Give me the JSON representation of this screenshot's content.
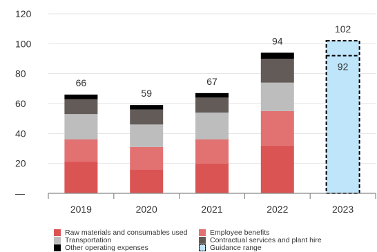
{
  "chart_data": {
    "type": "bar",
    "stacked": true,
    "categories": [
      "2019",
      "2020",
      "2021",
      "2022",
      "2023"
    ],
    "y_ticks": [
      {
        "value": 0,
        "label": "—"
      },
      {
        "value": 20,
        "label": "20"
      },
      {
        "value": 40,
        "label": "40"
      },
      {
        "value": 60,
        "label": "60"
      },
      {
        "value": 80,
        "label": "80"
      },
      {
        "value": 100,
        "label": "100"
      },
      {
        "value": 120,
        "label": "120"
      }
    ],
    "ylim": [
      0,
      120
    ],
    "grid": true,
    "series": [
      {
        "name": "Raw materials and consumables used",
        "color": "#db5454",
        "values": [
          21,
          16,
          20,
          32,
          null
        ]
      },
      {
        "name": "Employee benefits",
        "color": "#e27272",
        "values": [
          15,
          15,
          16,
          23,
          null
        ]
      },
      {
        "name": "Transportation",
        "color": "#bdbdbd",
        "values": [
          17,
          15,
          18,
          19,
          null
        ]
      },
      {
        "name": "Contractual services and plant hire",
        "color": "#625b58",
        "values": [
          10,
          10,
          10,
          16,
          null
        ]
      },
      {
        "name": "Other operating expenses",
        "color": "#000000",
        "values": [
          3,
          3,
          3,
          4,
          null
        ]
      }
    ],
    "totals": [
      {
        "category": "2019",
        "label": "66"
      },
      {
        "category": "2020",
        "label": "59"
      },
      {
        "category": "2021",
        "label": "67"
      },
      {
        "category": "2022",
        "label": "94"
      }
    ],
    "guidance": {
      "name": "Guidance range",
      "category": "2023",
      "low": 92,
      "high": 102,
      "low_label": "92",
      "high_label": "102",
      "fill": "#bfe5fb",
      "stroke": "#000000"
    },
    "legend": {
      "placement": "bottom",
      "items": [
        {
          "label": "Raw materials and consumables used",
          "color": "#db5454",
          "style": "solid"
        },
        {
          "label": "Employee benefits",
          "color": "#e27272",
          "style": "solid"
        },
        {
          "label": "Transportation",
          "color": "#bdbdbd",
          "style": "solid"
        },
        {
          "label": "Contractual services and plant hire",
          "color": "#625b58",
          "style": "solid"
        },
        {
          "label": "Other operating expenses",
          "color": "#000000",
          "style": "solid"
        },
        {
          "label": "Guidance range",
          "color": "#bfe5fb",
          "style": "dashed"
        }
      ]
    }
  }
}
